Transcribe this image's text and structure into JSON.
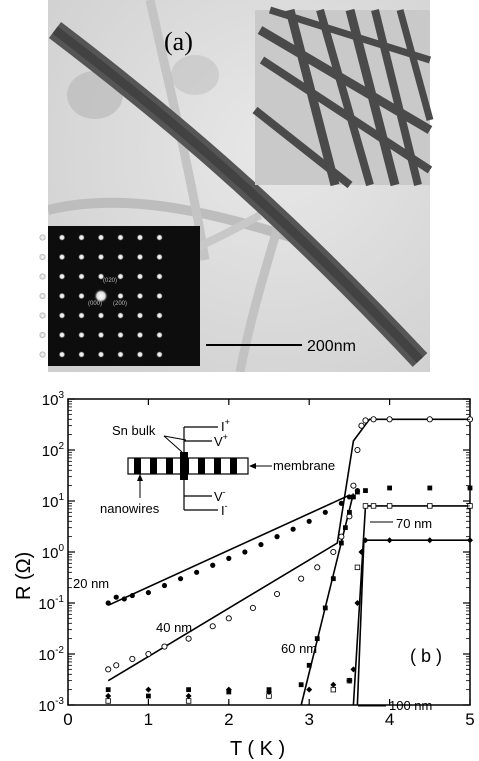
{
  "panel_a": {
    "label": "(a)",
    "scale_bar_text": "200nm",
    "diffraction_labels": [
      "(020)",
      "(000)",
      "(200)"
    ]
  },
  "panel_b": {
    "label": "( b )",
    "inset": {
      "sn_bulk": "Sn bulk",
      "membrane": "membrane",
      "nanowires": "nanowires",
      "i_plus": "I",
      "i_plus_sup": "+",
      "v_plus": "V",
      "v_plus_sup": "+",
      "v_minus": "V",
      "v_minus_sup": "-",
      "i_minus": "I",
      "i_minus_sup": "-"
    },
    "curve_labels": {
      "d20": "20 nm",
      "d40": "40 nm",
      "d60": "60 nm",
      "d70": "70 nm",
      "d100": "100 nm"
    }
  },
  "chart_data": {
    "type": "scatter",
    "xlabel": "T ( K )",
    "ylabel": "R (Ω)",
    "xlim": [
      0,
      5
    ],
    "ylim": [
      0.001,
      1000
    ],
    "yscale": "log",
    "x_ticks": [
      "0",
      "1",
      "2",
      "3",
      "4",
      "5"
    ],
    "y_ticks": [
      {
        "base": "10",
        "exp": "-3",
        "value": 0.001
      },
      {
        "base": "10",
        "exp": "-2",
        "value": 0.01
      },
      {
        "base": "10",
        "exp": "-1",
        "value": 0.1
      },
      {
        "base": "10",
        "exp": "0",
        "value": 1
      },
      {
        "base": "10",
        "exp": "1",
        "value": 10
      },
      {
        "base": "10",
        "exp": "2",
        "value": 100
      },
      {
        "base": "10",
        "exp": "3",
        "value": 1000
      }
    ],
    "series": [
      {
        "name": "20 nm",
        "marker": "filled-circle",
        "x": [
          0.5,
          0.6,
          0.7,
          0.8,
          1.0,
          1.2,
          1.4,
          1.6,
          1.8,
          2.0,
          2.2,
          2.4,
          2.6,
          2.8,
          3.0,
          3.2,
          3.4,
          3.5,
          3.6
        ],
        "y": [
          0.1,
          0.13,
          0.12,
          0.14,
          0.16,
          0.22,
          0.3,
          0.4,
          0.55,
          0.75,
          1.0,
          1.4,
          2.0,
          2.8,
          4.0,
          6.0,
          9.0,
          12,
          16
        ]
      },
      {
        "name": "40 nm",
        "marker": "open-circle",
        "x": [
          0.5,
          0.6,
          0.8,
          1.0,
          1.2,
          1.5,
          1.8,
          2.0,
          2.3,
          2.6,
          2.9,
          3.1,
          3.3,
          3.4,
          3.5,
          3.55,
          3.6,
          3.65,
          3.7,
          3.8,
          4.0,
          4.5,
          5.0
        ],
        "y": [
          0.005,
          0.006,
          0.008,
          0.01,
          0.014,
          0.02,
          0.035,
          0.05,
          0.08,
          0.15,
          0.3,
          0.5,
          1.0,
          2.0,
          5.0,
          20,
          100,
          300,
          380,
          400,
          400,
          400,
          400
        ]
      },
      {
        "name": "60 nm",
        "marker": "filled-square",
        "x": [
          0.5,
          1.0,
          1.5,
          2.0,
          2.5,
          2.9,
          3.0,
          3.1,
          3.2,
          3.3,
          3.4,
          3.45,
          3.5,
          3.55,
          3.6,
          3.7,
          4.0,
          4.5,
          5.0
        ],
        "y": [
          0.002,
          0.0015,
          0.002,
          0.0018,
          0.002,
          0.0025,
          0.006,
          0.02,
          0.08,
          0.3,
          1.5,
          3.0,
          6.0,
          12,
          15,
          16,
          18,
          18,
          18
        ]
      },
      {
        "name": "70 nm",
        "marker": "open-square",
        "x": [
          0.5,
          1.5,
          2.5,
          3.3,
          3.5,
          3.6,
          3.7,
          3.8,
          4.0,
          4.5,
          5.0
        ],
        "y": [
          0.0012,
          0.0012,
          0.0015,
          0.002,
          0.003,
          0.5,
          8.0,
          8.0,
          8.0,
          8.0,
          8.0
        ]
      },
      {
        "name": "100 nm",
        "marker": "filled-diamond",
        "x": [
          0.5,
          1.0,
          1.5,
          2.0,
          2.5,
          3.0,
          3.3,
          3.5,
          3.55,
          3.6,
          3.65,
          3.7,
          4.0,
          4.5,
          5.0
        ],
        "y": [
          0.0015,
          0.002,
          0.0015,
          0.002,
          0.0018,
          0.002,
          0.0025,
          0.003,
          0.005,
          0.1,
          1.0,
          1.7,
          1.7,
          1.7,
          1.7
        ]
      }
    ],
    "fits": [
      {
        "x": [
          0.5,
          3.5
        ],
        "y": [
          0.09,
          13
        ]
      },
      {
        "x": [
          0.5,
          3.35,
          3.55,
          3.75,
          5.0
        ],
        "y": [
          0.003,
          1.5,
          150,
          400,
          400
        ]
      },
      {
        "x": [
          2.9,
          3.55
        ],
        "y": [
          0.001,
          14
        ]
      },
      {
        "x": [
          3.55,
          3.7,
          5.0
        ],
        "y": [
          0.001,
          8,
          8
        ]
      },
      {
        "x": [
          3.6,
          3.68,
          5.0
        ],
        "y": [
          0.001,
          1.7,
          1.7
        ]
      }
    ]
  }
}
